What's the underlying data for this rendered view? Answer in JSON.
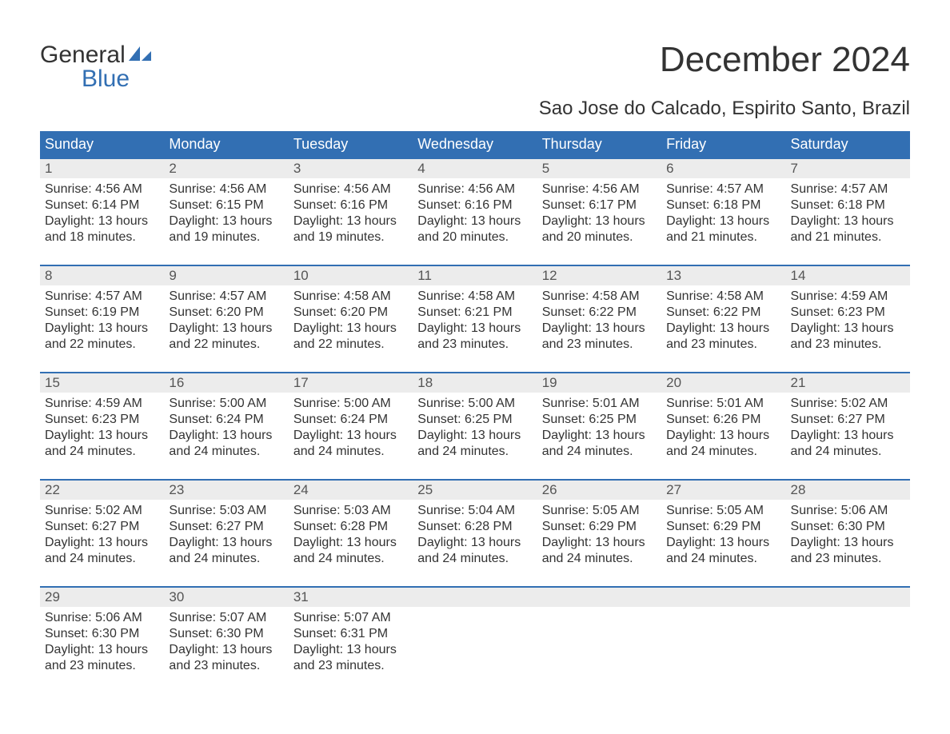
{
  "logo": {
    "part1": "General",
    "part2": "Blue",
    "brand_color": "#326fb3"
  },
  "title": "December 2024",
  "subtitle": "Sao Jose do Calcado, Espirito Santo, Brazil",
  "colors": {
    "header_bg": "#326fb3",
    "header_text": "#ffffff",
    "daynum_bg": "#ececec",
    "body_text": "#333333",
    "page_bg": "#ffffff",
    "week_border": "#326fb3"
  },
  "typography": {
    "title_fontsize": 44,
    "subtitle_fontsize": 24,
    "header_fontsize": 18,
    "daynum_fontsize": 17,
    "body_fontsize": 16,
    "logo_fontsize": 30
  },
  "day_labels": [
    "Sunday",
    "Monday",
    "Tuesday",
    "Wednesday",
    "Thursday",
    "Friday",
    "Saturday"
  ],
  "labels": {
    "sunrise": "Sunrise: ",
    "sunset": "Sunset: ",
    "daylight": "Daylight: "
  },
  "weeks": [
    [
      {
        "n": "1",
        "sunrise": "4:56 AM",
        "sunset": "6:14 PM",
        "daylight": "13 hours and 18 minutes."
      },
      {
        "n": "2",
        "sunrise": "4:56 AM",
        "sunset": "6:15 PM",
        "daylight": "13 hours and 19 minutes."
      },
      {
        "n": "3",
        "sunrise": "4:56 AM",
        "sunset": "6:16 PM",
        "daylight": "13 hours and 19 minutes."
      },
      {
        "n": "4",
        "sunrise": "4:56 AM",
        "sunset": "6:16 PM",
        "daylight": "13 hours and 20 minutes."
      },
      {
        "n": "5",
        "sunrise": "4:56 AM",
        "sunset": "6:17 PM",
        "daylight": "13 hours and 20 minutes."
      },
      {
        "n": "6",
        "sunrise": "4:57 AM",
        "sunset": "6:18 PM",
        "daylight": "13 hours and 21 minutes."
      },
      {
        "n": "7",
        "sunrise": "4:57 AM",
        "sunset": "6:18 PM",
        "daylight": "13 hours and 21 minutes."
      }
    ],
    [
      {
        "n": "8",
        "sunrise": "4:57 AM",
        "sunset": "6:19 PM",
        "daylight": "13 hours and 22 minutes."
      },
      {
        "n": "9",
        "sunrise": "4:57 AM",
        "sunset": "6:20 PM",
        "daylight": "13 hours and 22 minutes."
      },
      {
        "n": "10",
        "sunrise": "4:58 AM",
        "sunset": "6:20 PM",
        "daylight": "13 hours and 22 minutes."
      },
      {
        "n": "11",
        "sunrise": "4:58 AM",
        "sunset": "6:21 PM",
        "daylight": "13 hours and 23 minutes."
      },
      {
        "n": "12",
        "sunrise": "4:58 AM",
        "sunset": "6:22 PM",
        "daylight": "13 hours and 23 minutes."
      },
      {
        "n": "13",
        "sunrise": "4:58 AM",
        "sunset": "6:22 PM",
        "daylight": "13 hours and 23 minutes."
      },
      {
        "n": "14",
        "sunrise": "4:59 AM",
        "sunset": "6:23 PM",
        "daylight": "13 hours and 23 minutes."
      }
    ],
    [
      {
        "n": "15",
        "sunrise": "4:59 AM",
        "sunset": "6:23 PM",
        "daylight": "13 hours and 24 minutes."
      },
      {
        "n": "16",
        "sunrise": "5:00 AM",
        "sunset": "6:24 PM",
        "daylight": "13 hours and 24 minutes."
      },
      {
        "n": "17",
        "sunrise": "5:00 AM",
        "sunset": "6:24 PM",
        "daylight": "13 hours and 24 minutes."
      },
      {
        "n": "18",
        "sunrise": "5:00 AM",
        "sunset": "6:25 PM",
        "daylight": "13 hours and 24 minutes."
      },
      {
        "n": "19",
        "sunrise": "5:01 AM",
        "sunset": "6:25 PM",
        "daylight": "13 hours and 24 minutes."
      },
      {
        "n": "20",
        "sunrise": "5:01 AM",
        "sunset": "6:26 PM",
        "daylight": "13 hours and 24 minutes."
      },
      {
        "n": "21",
        "sunrise": "5:02 AM",
        "sunset": "6:27 PM",
        "daylight": "13 hours and 24 minutes."
      }
    ],
    [
      {
        "n": "22",
        "sunrise": "5:02 AM",
        "sunset": "6:27 PM",
        "daylight": "13 hours and 24 minutes."
      },
      {
        "n": "23",
        "sunrise": "5:03 AM",
        "sunset": "6:27 PM",
        "daylight": "13 hours and 24 minutes."
      },
      {
        "n": "24",
        "sunrise": "5:03 AM",
        "sunset": "6:28 PM",
        "daylight": "13 hours and 24 minutes."
      },
      {
        "n": "25",
        "sunrise": "5:04 AM",
        "sunset": "6:28 PM",
        "daylight": "13 hours and 24 minutes."
      },
      {
        "n": "26",
        "sunrise": "5:05 AM",
        "sunset": "6:29 PM",
        "daylight": "13 hours and 24 minutes."
      },
      {
        "n": "27",
        "sunrise": "5:05 AM",
        "sunset": "6:29 PM",
        "daylight": "13 hours and 24 minutes."
      },
      {
        "n": "28",
        "sunrise": "5:06 AM",
        "sunset": "6:30 PM",
        "daylight": "13 hours and 23 minutes."
      }
    ],
    [
      {
        "n": "29",
        "sunrise": "5:06 AM",
        "sunset": "6:30 PM",
        "daylight": "13 hours and 23 minutes."
      },
      {
        "n": "30",
        "sunrise": "5:07 AM",
        "sunset": "6:30 PM",
        "daylight": "13 hours and 23 minutes."
      },
      {
        "n": "31",
        "sunrise": "5:07 AM",
        "sunset": "6:31 PM",
        "daylight": "13 hours and 23 minutes."
      },
      null,
      null,
      null,
      null
    ]
  ]
}
